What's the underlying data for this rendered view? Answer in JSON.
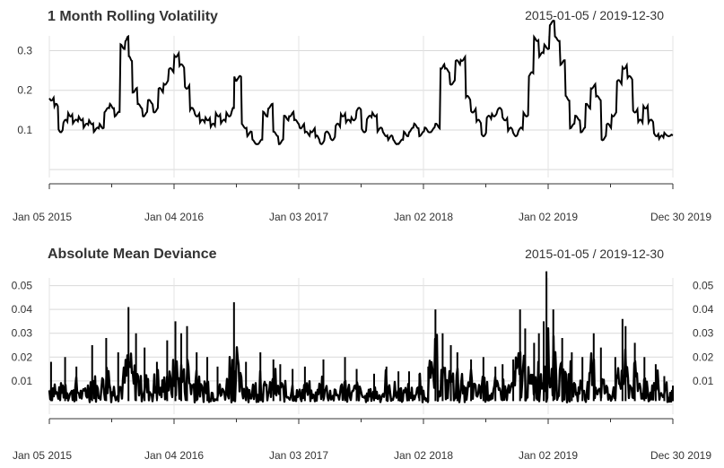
{
  "chart_data": [
    {
      "type": "line",
      "title": "1 Month Rolling Volatility",
      "date_range": "2015-01-05 / 2019-12-30",
      "x_tick_labels": [
        "Jan 05 2015",
        "Jan 04 2016",
        "Jan 03 2017",
        "Jan 02 2018",
        "Jan 02 2019",
        "Dec 30 2019"
      ],
      "y_tick_labels": [
        "0.1",
        "0.2",
        "0.3"
      ],
      "y_tick_values": [
        0.1,
        0.2,
        0.3
      ],
      "ylim": [
        -0.02,
        0.36
      ],
      "xlim": [
        "2015-01-05",
        "2019-12-30"
      ],
      "grid": true,
      "line_color": "#000000",
      "series": [
        {
          "x": [
            "2015-01-05",
            "2015-01-20",
            "2015-02-01",
            "2015-02-15",
            "2015-03-01",
            "2015-03-15",
            "2015-04-01",
            "2015-04-15",
            "2015-05-01",
            "2015-05-15",
            "2015-06-01",
            "2015-06-15",
            "2015-07-01",
            "2015-07-15",
            "2015-08-01",
            "2015-08-15",
            "2015-08-25",
            "2015-09-05",
            "2015-09-20",
            "2015-10-05",
            "2015-10-20",
            "2015-11-05",
            "2015-11-20",
            "2015-12-05",
            "2015-12-20",
            "2016-01-05",
            "2016-01-20",
            "2016-02-05",
            "2016-02-20",
            "2016-03-05",
            "2016-03-20",
            "2016-04-05",
            "2016-04-20",
            "2016-05-05",
            "2016-05-20",
            "2016-06-05",
            "2016-06-20",
            "2016-06-28",
            "2016-07-05",
            "2016-07-20",
            "2016-08-05",
            "2016-08-20",
            "2016-09-05",
            "2016-09-20",
            "2016-10-05",
            "2016-10-20",
            "2016-11-05",
            "2016-11-20",
            "2016-12-05",
            "2016-12-20",
            "2017-01-05",
            "2017-01-20",
            "2017-02-05",
            "2017-02-20",
            "2017-03-05",
            "2017-03-20",
            "2017-04-05",
            "2017-04-20",
            "2017-05-05",
            "2017-05-20",
            "2017-06-05",
            "2017-06-20",
            "2017-07-05",
            "2017-07-20",
            "2017-08-05",
            "2017-08-20",
            "2017-09-05",
            "2017-09-20",
            "2017-10-05",
            "2017-10-20",
            "2017-11-05",
            "2017-11-20",
            "2017-12-05",
            "2017-12-20",
            "2018-01-05",
            "2018-01-20",
            "2018-02-05",
            "2018-02-20",
            "2018-03-05",
            "2018-03-20",
            "2018-04-05",
            "2018-04-20",
            "2018-05-05",
            "2018-05-20",
            "2018-06-05",
            "2018-06-20",
            "2018-07-05",
            "2018-07-20",
            "2018-08-05",
            "2018-08-20",
            "2018-09-05",
            "2018-09-20",
            "2018-10-05",
            "2018-10-20",
            "2018-11-05",
            "2018-11-20",
            "2018-12-05",
            "2018-12-20",
            "2019-01-05",
            "2019-01-20",
            "2019-02-05",
            "2019-02-20",
            "2019-03-05",
            "2019-03-20",
            "2019-04-05",
            "2019-04-20",
            "2019-05-05",
            "2019-05-20",
            "2019-06-05",
            "2019-06-20",
            "2019-07-05",
            "2019-07-20",
            "2019-08-05",
            "2019-08-20",
            "2019-09-05",
            "2019-09-20",
            "2019-10-05",
            "2019-10-20",
            "2019-11-05",
            "2019-11-20",
            "2019-12-05",
            "2019-12-30"
          ],
          "values": [
            0.18,
            0.16,
            0.1,
            0.12,
            0.14,
            0.12,
            0.13,
            0.11,
            0.12,
            0.1,
            0.11,
            0.15,
            0.16,
            0.14,
            0.31,
            0.33,
            0.28,
            0.2,
            0.16,
            0.14,
            0.17,
            0.15,
            0.2,
            0.22,
            0.25,
            0.29,
            0.26,
            0.21,
            0.15,
            0.14,
            0.12,
            0.13,
            0.11,
            0.14,
            0.12,
            0.14,
            0.15,
            0.23,
            0.23,
            0.11,
            0.09,
            0.07,
            0.07,
            0.14,
            0.16,
            0.09,
            0.07,
            0.13,
            0.14,
            0.12,
            0.11,
            0.09,
            0.1,
            0.08,
            0.07,
            0.09,
            0.08,
            0.11,
            0.14,
            0.12,
            0.13,
            0.15,
            0.1,
            0.13,
            0.14,
            0.1,
            0.09,
            0.08,
            0.07,
            0.07,
            0.09,
            0.1,
            0.11,
            0.09,
            0.1,
            0.1,
            0.11,
            0.26,
            0.25,
            0.22,
            0.27,
            0.28,
            0.18,
            0.15,
            0.12,
            0.09,
            0.13,
            0.14,
            0.15,
            0.13,
            0.1,
            0.09,
            0.1,
            0.14,
            0.24,
            0.33,
            0.29,
            0.31,
            0.37,
            0.33,
            0.27,
            0.18,
            0.11,
            0.13,
            0.1,
            0.16,
            0.21,
            0.18,
            0.08,
            0.11,
            0.14,
            0.22,
            0.26,
            0.23,
            0.15,
            0.12,
            0.16,
            0.12,
            0.09,
            0.08,
            0.09,
            0.09
          ]
        }
      ]
    },
    {
      "type": "line",
      "title": "Absolute Mean Deviance",
      "date_range": "2015-01-05 / 2019-12-30",
      "x_tick_labels": [
        "Jan 05 2015",
        "Jan 04 2016",
        "Jan 03 2017",
        "Jan 02 2018",
        "Jan 02 2019",
        "Dec 30 2019"
      ],
      "y_tick_labels": [
        "0.01",
        "0.02",
        "0.03",
        "0.04",
        "0.05"
      ],
      "y_tick_values": [
        0.01,
        0.02,
        0.03,
        0.04,
        0.05
      ],
      "ylim": [
        -0.004,
        0.057
      ],
      "xlim": [
        "2015-01-05",
        "2019-12-30"
      ],
      "grid": true,
      "line_color": "#000000",
      "series": [
        {
          "peaks_x": [
            "2015-01-10",
            "2015-02-20",
            "2015-03-25",
            "2015-05-10",
            "2015-06-20",
            "2015-07-25",
            "2015-08-24",
            "2015-09-15",
            "2015-10-10",
            "2015-11-15",
            "2015-12-15",
            "2016-01-08",
            "2016-01-25",
            "2016-02-11",
            "2016-03-10",
            "2016-04-10",
            "2016-05-10",
            "2016-06-27",
            "2016-08-01",
            "2016-09-12",
            "2016-10-20",
            "2016-11-09",
            "2016-12-15",
            "2017-01-20",
            "2017-03-15",
            "2017-05-17",
            "2017-06-20",
            "2017-08-10",
            "2017-09-15",
            "2017-10-20",
            "2017-11-20",
            "2017-12-20",
            "2018-01-15",
            "2018-02-05",
            "2018-02-26",
            "2018-03-22",
            "2018-04-10",
            "2018-05-20",
            "2018-06-25",
            "2018-07-30",
            "2018-08-20",
            "2018-09-20",
            "2018-10-10",
            "2018-10-25",
            "2018-11-20",
            "2018-12-04",
            "2018-12-18",
            "2018-12-26",
            "2019-01-15",
            "2019-02-10",
            "2019-03-10",
            "2019-04-10",
            "2019-05-13",
            "2019-06-03",
            "2019-07-15",
            "2019-08-05",
            "2019-08-14",
            "2019-09-10",
            "2019-10-08",
            "2019-11-10",
            "2019-12-05",
            "2019-12-30"
          ],
          "peaks_values": [
            0.018,
            0.02,
            0.016,
            0.025,
            0.028,
            0.022,
            0.041,
            0.03,
            0.024,
            0.018,
            0.027,
            0.035,
            0.03,
            0.033,
            0.022,
            0.02,
            0.016,
            0.043,
            0.018,
            0.022,
            0.019,
            0.017,
            0.015,
            0.016,
            0.019,
            0.02,
            0.015,
            0.013,
            0.016,
            0.014,
            0.014,
            0.013,
            0.016,
            0.04,
            0.03,
            0.025,
            0.022,
            0.019,
            0.02,
            0.016,
            0.017,
            0.019,
            0.04,
            0.032,
            0.026,
            0.03,
            0.035,
            0.056,
            0.04,
            0.028,
            0.022,
            0.02,
            0.03,
            0.024,
            0.02,
            0.036,
            0.033,
            0.026,
            0.02,
            0.017,
            0.012,
            0.008
          ]
        }
      ]
    }
  ]
}
